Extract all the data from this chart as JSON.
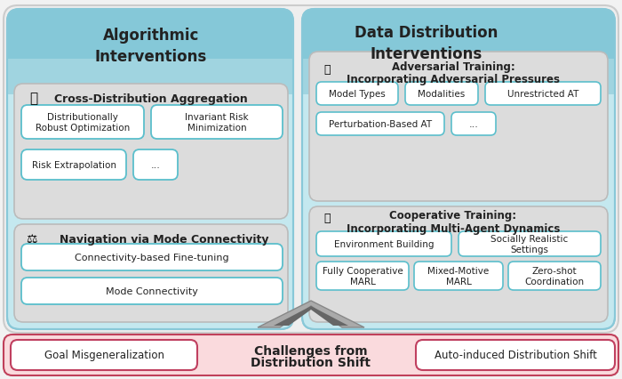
{
  "bg_color": "#f2f2f2",
  "left_panel_color_top": "#7ecfda",
  "left_panel_color": "#b8e4ea",
  "right_panel_color": "#b8e4ea",
  "inner_box_color": "#e0e0e0",
  "item_box_border": "#5bbfcc",
  "item_box_fill": "#ffffff",
  "bottom_bar_fill": "#fadadd",
  "bottom_bar_border": "#c0405a",
  "bottom_item_border": "#c04060",
  "title_left": "Algorithmic\nInterventions",
  "title_right": "Data Distribution\nInterventions",
  "section1_title_normal": "Cross-Distribution Aggregation",
  "section2_title_normal": "Navigation via Mode Connectivity",
  "section3_title_line1": "Adversarial Training:",
  "section3_title_line2": "Incorporating Adversarial Pressures",
  "section4_title_line1": "Cooperative Training:",
  "section4_title_line2": "Incorporating Multi-Agent Dynamics",
  "s1_r1_c1": "Distributionally\nRobust Optimization",
  "s1_r1_c2": "Invariant Risk\nMinimization",
  "s1_r2_c1": "Risk Extrapolation",
  "s1_r2_c2": "...",
  "s2_r1": "Connectivity-based Fine-tuning",
  "s2_r2": "Mode Connectivity",
  "s3_r1_c1": "Model Types",
  "s3_r1_c2": "Modalities",
  "s3_r1_c3": "Unrestricted AT",
  "s3_r2_c1": "Perturbation-Based AT",
  "s3_r2_c2": "...",
  "s4_r1_c1": "Environment Building",
  "s4_r1_c2": "Socially Realistic\nSettings",
  "s4_r2_c1": "Fully Cooperative\nMARL",
  "s4_r2_c2": "Mixed-Motive\nMARL",
  "s4_r2_c3": "Zero-shot\nCoordination",
  "bottom_left": "Goal Misgeneralization",
  "bottom_center_line1": "Challenges from",
  "bottom_center_line2": "Distribution Shift",
  "bottom_right": "Auto-induced Distribution Shift",
  "arrow_color": "#888888",
  "text_dark": "#222222"
}
